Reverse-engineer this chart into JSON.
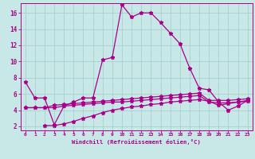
{
  "xlabel": "Windchill (Refroidissement éolien,°C)",
  "background_color": "#c8e8e8",
  "grid_color": "#a8d0d0",
  "line_color": "#aa0088",
  "x_ticks": [
    0,
    1,
    2,
    3,
    4,
    5,
    6,
    7,
    8,
    9,
    10,
    11,
    12,
    13,
    14,
    15,
    16,
    17,
    18,
    19,
    20,
    21,
    22,
    23
  ],
  "y_ticks": [
    2,
    4,
    6,
    8,
    10,
    12,
    14,
    16
  ],
  "ylim": [
    1.5,
    17.2
  ],
  "xlim": [
    -0.5,
    23.5
  ],
  "series1_x": [
    0,
    1,
    2,
    3,
    4,
    5,
    6,
    7,
    8,
    9,
    10,
    11,
    12,
    13,
    14,
    15,
    16,
    17,
    18,
    19,
    20,
    21,
    22,
    23
  ],
  "series1_y": [
    7.5,
    5.5,
    5.5,
    2.2,
    4.5,
    5.0,
    5.5,
    5.5,
    10.2,
    10.5,
    17.0,
    15.5,
    16.0,
    16.0,
    14.8,
    13.5,
    12.2,
    9.2,
    6.7,
    6.5,
    5.0,
    4.0,
    4.5,
    5.2
  ],
  "series2_x": [
    0,
    1,
    2,
    3,
    4,
    5,
    6,
    7,
    8,
    9,
    10,
    11,
    12,
    13,
    14,
    15,
    16,
    17,
    18,
    19,
    20,
    21,
    22,
    23
  ],
  "series2_y": [
    4.3,
    4.3,
    4.3,
    4.6,
    4.7,
    4.8,
    4.9,
    5.0,
    5.1,
    5.2,
    5.3,
    5.4,
    5.5,
    5.6,
    5.7,
    5.8,
    5.9,
    6.0,
    6.1,
    5.2,
    5.2,
    5.2,
    5.3,
    5.4
  ],
  "series3_x": [
    0,
    1,
    2,
    3,
    4,
    5,
    6,
    7,
    8,
    9,
    10,
    11,
    12,
    13,
    14,
    15,
    16,
    17,
    18,
    19,
    20,
    21,
    22,
    23
  ],
  "series3_y": [
    4.3,
    4.3,
    4.3,
    4.3,
    4.5,
    4.6,
    4.7,
    4.8,
    4.9,
    5.0,
    5.0,
    5.1,
    5.2,
    5.3,
    5.4,
    5.5,
    5.6,
    5.7,
    5.8,
    5.0,
    4.9,
    4.9,
    5.0,
    5.1
  ],
  "series4_x": [
    2,
    3,
    4,
    5,
    6,
    7,
    8,
    9,
    10,
    11,
    12,
    13,
    14,
    15,
    16,
    17,
    18,
    19,
    20,
    21,
    22,
    23
  ],
  "series4_y": [
    2.1,
    2.1,
    2.3,
    2.6,
    3.0,
    3.3,
    3.7,
    4.0,
    4.2,
    4.4,
    4.5,
    4.7,
    4.8,
    5.0,
    5.1,
    5.2,
    5.3,
    5.1,
    4.6,
    4.8,
    5.0,
    5.2
  ]
}
